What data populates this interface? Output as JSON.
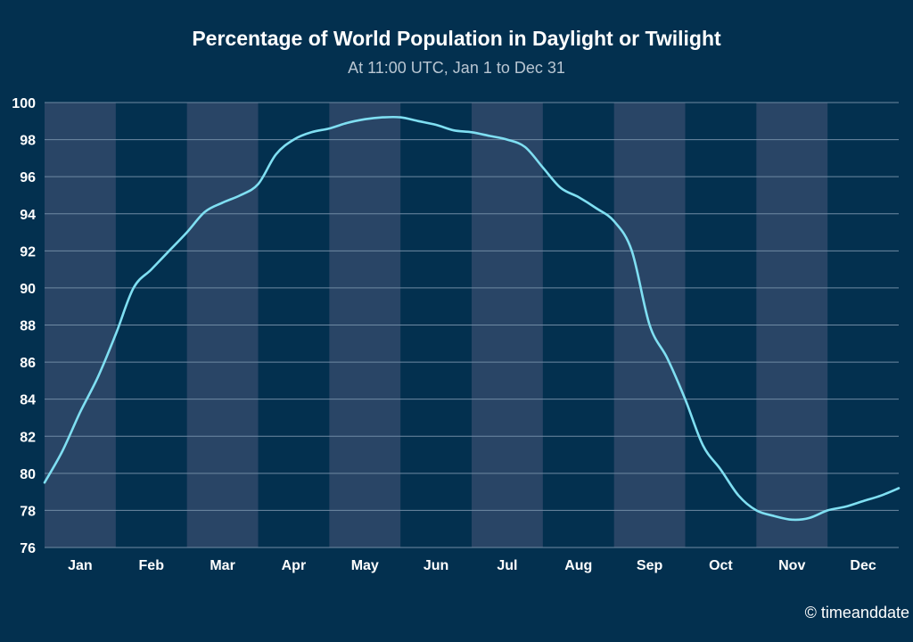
{
  "chart_data": {
    "type": "line",
    "title": "Percentage of World Population in Daylight or Twilight",
    "subtitle": "At 11:00 UTC, Jan 1 to Dec 31",
    "xlabel": "",
    "ylabel": "",
    "ylim": [
      76,
      100
    ],
    "yticks": [
      100,
      98,
      96,
      94,
      92,
      90,
      88,
      86,
      84,
      82,
      80,
      78,
      76
    ],
    "categories": [
      "Jan",
      "Feb",
      "Mar",
      "Apr",
      "May",
      "Jun",
      "Jul",
      "Aug",
      "Sep",
      "Oct",
      "Nov",
      "Dec"
    ],
    "grid": true,
    "alternating_month_bands": true,
    "series": [
      {
        "color": "#7fdff2",
        "x": [
          0.0,
          0.25,
          0.5,
          0.75,
          1.0,
          1.25,
          1.5,
          1.75,
          2.0,
          2.25,
          2.5,
          2.75,
          3.0,
          3.25,
          3.5,
          3.75,
          4.0,
          4.25,
          4.5,
          4.75,
          5.0,
          5.25,
          5.5,
          5.75,
          6.0,
          6.25,
          6.5,
          6.75,
          7.0,
          7.25,
          7.5,
          7.75,
          8.0,
          8.25,
          8.5,
          8.75,
          9.0,
          9.25,
          9.5,
          9.75,
          10.0,
          10.25,
          10.5,
          10.75,
          11.0,
          11.25,
          11.5,
          11.75,
          12.0
        ],
        "y": [
          79.5,
          81.2,
          83.3,
          85.2,
          87.5,
          90.0,
          91.0,
          92.0,
          93.0,
          94.1,
          94.6,
          95.0,
          95.6,
          97.2,
          98.0,
          98.4,
          98.6,
          98.9,
          99.1,
          99.2,
          99.2,
          99.0,
          98.8,
          98.5,
          98.4,
          98.2,
          98.0,
          97.6,
          96.5,
          95.4,
          94.9,
          94.3,
          93.6,
          92.0,
          88.0,
          86.2,
          84.0,
          81.5,
          80.2,
          78.8,
          78.0,
          77.7,
          77.5,
          77.6,
          78.0,
          78.2,
          78.5,
          78.8,
          79.2
        ]
      }
    ]
  },
  "credit": "© timeanddate"
}
